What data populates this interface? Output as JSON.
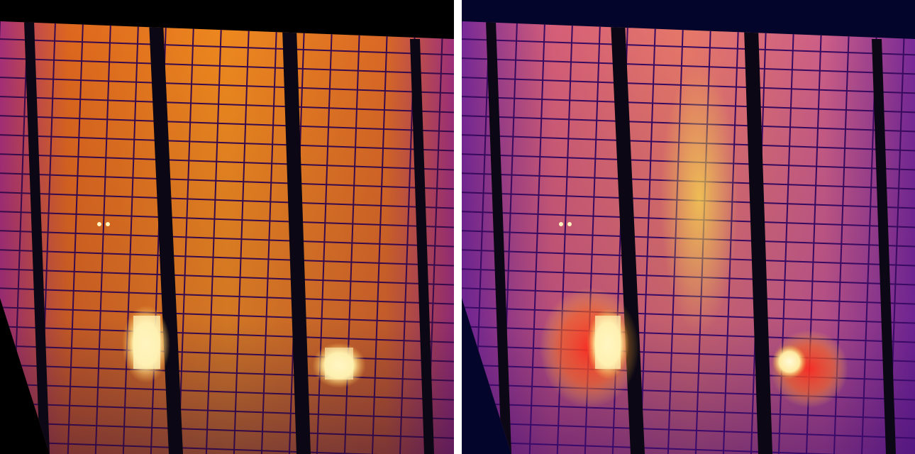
{
  "figure": {
    "panels": [
      {
        "id": "left",
        "content": "raw-thermal-image",
        "background": "#000000",
        "hotspot_color": "#fff7c8"
      },
      {
        "id": "right",
        "content": "thermal-image-with-heatmap-overlay",
        "background": "#03052a",
        "hotspot_color": "#fff7c8",
        "overlay_color": "#ff2a1e"
      }
    ],
    "palette": {
      "cell_hot": "#f3861c",
      "cell_mid": "#c8401f",
      "cell_cool": "#6a1a7a",
      "frame": "#0c0714",
      "grid_line": "#3a0b4e"
    }
  }
}
